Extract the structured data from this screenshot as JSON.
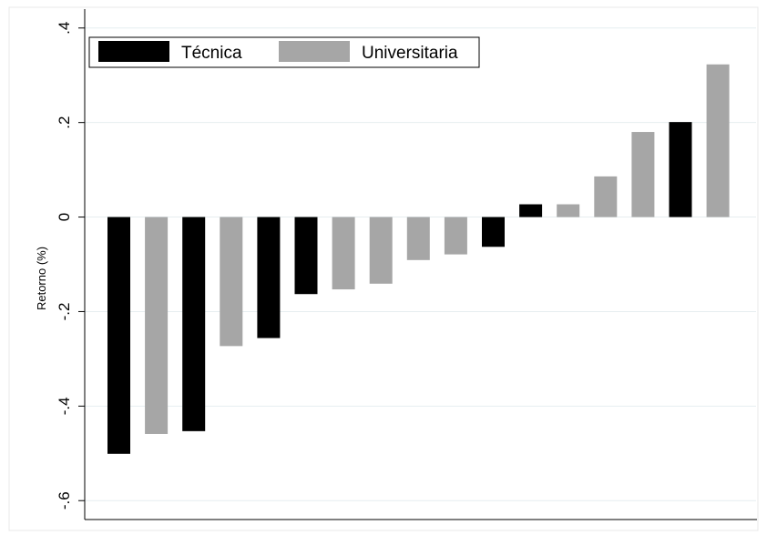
{
  "chart_data": {
    "type": "bar",
    "ylabel": "Retorno (%)",
    "xlabel": "",
    "ylim": [
      -0.64,
      0.44
    ],
    "y_ticks": [
      {
        "value": 0.4,
        "label": ".4"
      },
      {
        "value": 0.2,
        "label": ".2"
      },
      {
        "value": 0.0,
        "label": "0"
      },
      {
        "value": -0.2,
        "label": "-.2"
      },
      {
        "value": -0.4,
        "label": "-.4"
      },
      {
        "value": -0.6,
        "label": "-.6"
      }
    ],
    "grid": true,
    "legend_position": "top-left",
    "series": [
      {
        "name": "Técnica",
        "color": "#000000"
      },
      {
        "name": "Universitaria",
        "color": "#a6a6a6"
      }
    ],
    "bars": [
      {
        "series": 0,
        "value": -0.501
      },
      {
        "series": 1,
        "value": -0.459
      },
      {
        "series": 0,
        "value": -0.453
      },
      {
        "series": 1,
        "value": -0.273
      },
      {
        "series": 0,
        "value": -0.256
      },
      {
        "series": 0,
        "value": -0.163
      },
      {
        "series": 1,
        "value": -0.153
      },
      {
        "series": 1,
        "value": -0.141
      },
      {
        "series": 1,
        "value": -0.091
      },
      {
        "series": 1,
        "value": -0.079
      },
      {
        "series": 0,
        "value": -0.063
      },
      {
        "series": 0,
        "value": 0.027
      },
      {
        "series": 1,
        "value": 0.027
      },
      {
        "series": 1,
        "value": 0.086
      },
      {
        "series": 1,
        "value": 0.18
      },
      {
        "series": 0,
        "value": 0.201
      },
      {
        "series": 1,
        "value": 0.323
      }
    ]
  }
}
